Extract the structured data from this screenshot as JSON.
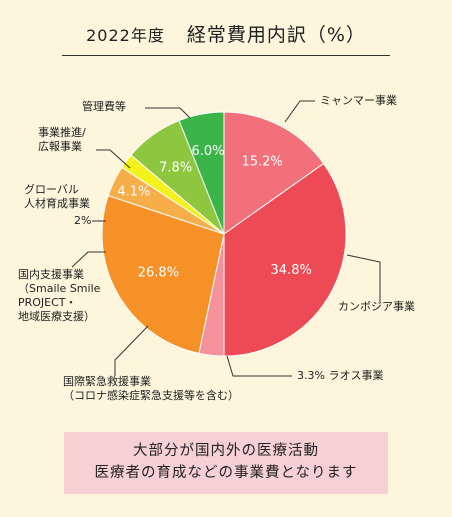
{
  "title": {
    "year": "2022年度",
    "main": "経常費用内訳（%）"
  },
  "chart_data": {
    "type": "pie",
    "title": "経常費用内訳（%）",
    "start_angle_deg": 0,
    "direction": "clockwise",
    "slices": [
      {
        "label": "ミャンマー事業",
        "value": 15.2,
        "value_text": "15.2%",
        "color": "#f2707a"
      },
      {
        "label": "カンボジア事業",
        "value": 34.8,
        "value_text": "34.8%",
        "color": "#ee4a55"
      },
      {
        "label": "ラオス事業",
        "value": 3.3,
        "value_text": "3.3%",
        "color": "#f4919a"
      },
      {
        "label": "国際緊急救援事業（コロナ感染症緊急支援等を含む）",
        "value": 26.8,
        "value_text": "26.8%",
        "color": "#f59127"
      },
      {
        "label": "国内支援事業（Smaile Smile PROJECT・地域医療支援）",
        "value": 4.1,
        "value_text": "4.1%",
        "color": "#f8ae48"
      },
      {
        "label": "グローバル人材育成事業",
        "value": 2.0,
        "value_text": "2%",
        "color": "#f4f21b"
      },
      {
        "label": "事業推進/広報事業",
        "value": 7.8,
        "value_text": "7.8%",
        "color": "#8dc63f"
      },
      {
        "label": "管理費等",
        "value": 6.0,
        "value_text": "6.0%",
        "color": "#3bb54a"
      }
    ]
  },
  "labels": {
    "myanmar": "ミャンマー事業",
    "cambodia": "カンボジア事業",
    "laos": "3.3% ラオス事業",
    "emergency_1": "国際緊急救援事業",
    "emergency_2": "（コロナ感染症緊急支援等を含む）",
    "domestic_1": "国内支援事業",
    "domestic_2": "（Smaile Smile",
    "domestic_3": "PROJECT・",
    "domestic_4": "地域医療支援）",
    "global_1": "グローバル",
    "global_2": "人材育成事業",
    "global_pct": "2%",
    "promo_1": "事業推進/",
    "promo_2": "広報事業",
    "admin": "管理費等"
  },
  "note": {
    "line1": "大部分が国内外の医療活動",
    "line2": "医療者の育成などの事業費となります"
  }
}
